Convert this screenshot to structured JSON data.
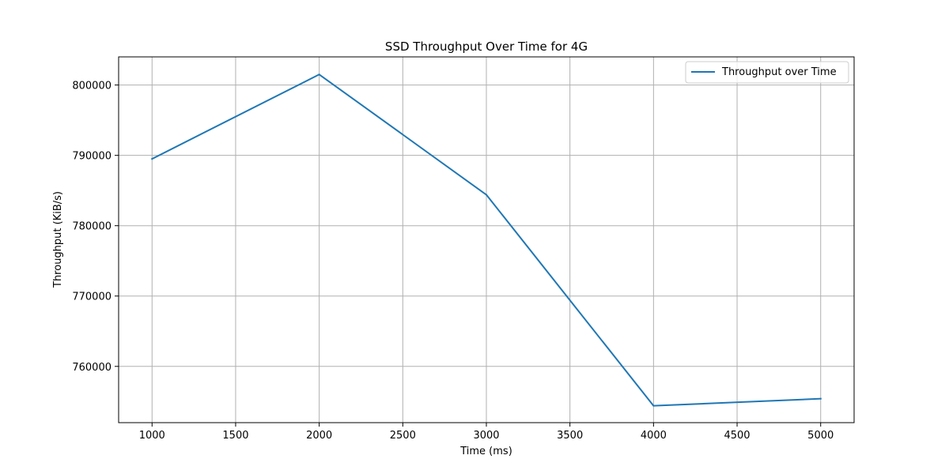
{
  "chart_data": {
    "type": "line",
    "title": "SSD Throughput Over Time for 4G",
    "xlabel": "Time (ms)",
    "ylabel": "Throughput (KiB/s)",
    "xlim": [
      800,
      5200
    ],
    "ylim": [
      752000,
      804000
    ],
    "xticks": [
      1000,
      1500,
      2000,
      2500,
      3000,
      3500,
      4000,
      4500,
      5000
    ],
    "yticks": [
      760000,
      770000,
      780000,
      790000,
      800000
    ],
    "grid": true,
    "legend_position": "top-right",
    "series": [
      {
        "name": "Throughput over Time",
        "color": "#1f77b4",
        "x": [
          1000,
          2000,
          3000,
          4000,
          5000
        ],
        "y": [
          789500,
          801500,
          784400,
          754400,
          755400
        ]
      }
    ]
  }
}
